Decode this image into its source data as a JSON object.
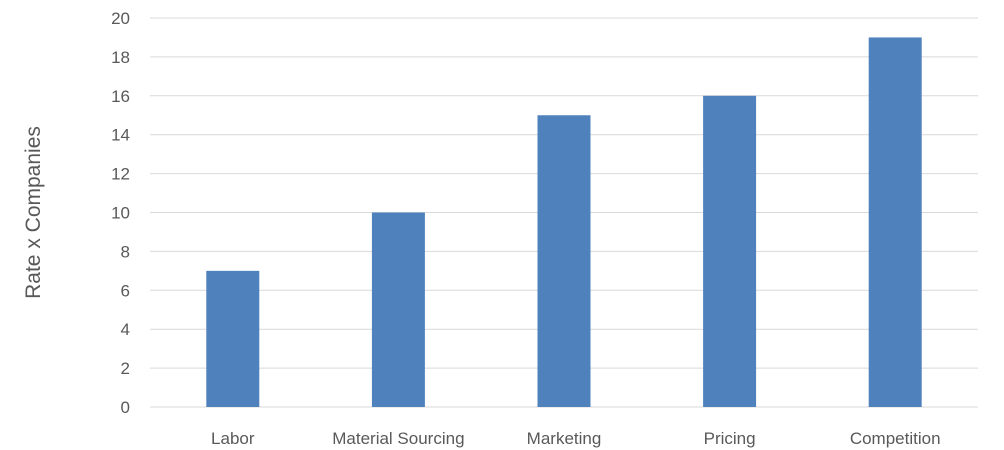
{
  "chart_data": {
    "type": "bar",
    "title": "",
    "xlabel": "",
    "ylabel": "Rate x Companies",
    "categories": [
      "Labor",
      "Material Sourcing",
      "Marketing",
      "Pricing",
      "Competition"
    ],
    "values": [
      7,
      10,
      15,
      16,
      19
    ],
    "ylim": [
      0,
      20
    ],
    "y_ticks": [
      "0",
      "2",
      "4",
      "6",
      "8",
      "10",
      "12",
      "14",
      "16",
      "18",
      "20"
    ],
    "grid": true,
    "legend": "none",
    "bar_color": "#4F81BD",
    "grid_color": "#D9D9D9",
    "text_color": "#595959"
  }
}
